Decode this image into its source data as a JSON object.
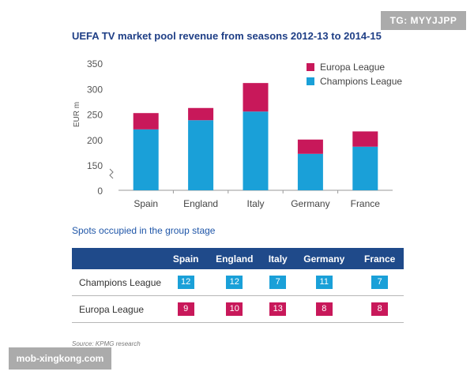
{
  "chart_data": {
    "type": "bar",
    "stacked": true,
    "title": "UEFA TV market pool revenue from seasons 2012-13 to 2014-15",
    "xlabel": "",
    "ylabel": "EUR m",
    "categories": [
      "Spain",
      "England",
      "Italy",
      "Germany",
      "France"
    ],
    "series": [
      {
        "name": "Champions League",
        "values": [
          220,
          238,
          255,
          172,
          186
        ],
        "color": "#1aa0d8"
      },
      {
        "name": "Europa League",
        "values": [
          32,
          24,
          56,
          28,
          30
        ],
        "color": "#c8185a"
      }
    ],
    "y_ticks": [
      "0",
      "150",
      "200",
      "250",
      "300",
      "350"
    ],
    "y_tick_values": [
      0,
      150,
      200,
      250,
      300,
      350
    ],
    "axis_break": true,
    "ylim": [
      0,
      350
    ],
    "legend_position": "top-right"
  },
  "table": {
    "subtitle": "Spots occupied in the group stage",
    "columns": [
      "Spain",
      "England",
      "Italy",
      "Germany",
      "France"
    ],
    "rows": [
      {
        "label": "Champions League",
        "values": [
          "12",
          "12",
          "7",
          "11",
          "7"
        ],
        "color": "#1aa0d8"
      },
      {
        "label": "Europa League",
        "values": [
          "9",
          "10",
          "13",
          "8",
          "8"
        ],
        "color": "#c8185a"
      }
    ]
  },
  "source": "Source: KPMG research",
  "watermarks": {
    "top_right": "TG: MYYJJPP",
    "bottom_left": "mob-xingkong.com"
  },
  "colors": {
    "title": "#1f3f86",
    "subtitle": "#1f56a8",
    "table_header": "#1f4a8a"
  }
}
